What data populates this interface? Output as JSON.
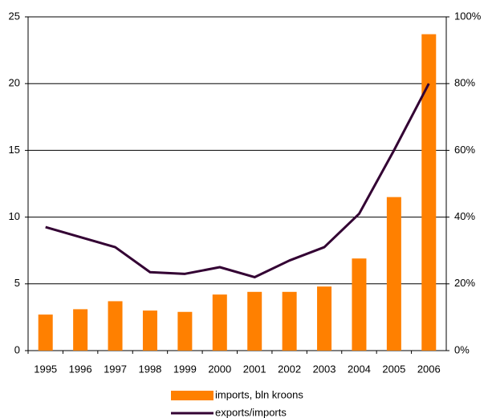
{
  "chart_data": {
    "type": "bar-line",
    "categories": [
      "1995",
      "1996",
      "1997",
      "1998",
      "1999",
      "2000",
      "2001",
      "2002",
      "2003",
      "2004",
      "2005",
      "2006"
    ],
    "series": [
      {
        "name": "imports, bln kroons",
        "color": "#ff8000",
        "type": "bar",
        "values": [
          2.7,
          3.1,
          3.7,
          3.0,
          2.9,
          4.2,
          4.4,
          4.4,
          4.8,
          6.9,
          11.5,
          23.7
        ]
      },
      {
        "name": "exports/imports",
        "color": "#330033",
        "type": "line",
        "axis": "y2",
        "values": [
          37,
          34,
          31,
          23.5,
          23,
          25,
          22,
          27,
          31,
          41,
          60,
          80
        ]
      }
    ],
    "ylim": [
      0,
      25
    ],
    "yticks": [
      0,
      5,
      10,
      15,
      20,
      25
    ],
    "y2lim": [
      0,
      100
    ],
    "y2ticks": [
      {
        "value": 0,
        "label": "0%"
      },
      {
        "value": 20,
        "label": "20%"
      },
      {
        "value": 40,
        "label": "40%"
      },
      {
        "value": 60,
        "label": "60%"
      },
      {
        "value": 80,
        "label": "80%"
      },
      {
        "value": 100,
        "label": "100%"
      }
    ],
    "grid": true,
    "legend": "bottom"
  }
}
